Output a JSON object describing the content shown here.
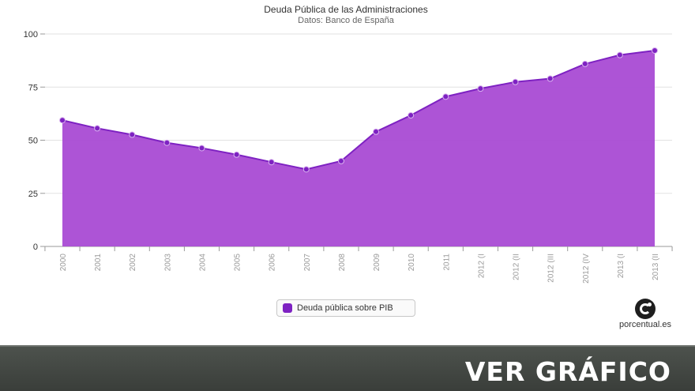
{
  "chart_data": {
    "type": "area",
    "title": "Deuda Pública de las Administraciones",
    "subtitle": "Datos: Banco de España",
    "categories": [
      "2000",
      "2001",
      "2002",
      "2003",
      "2004",
      "2005",
      "2006",
      "2007",
      "2008",
      "2009",
      "2010",
      "2011",
      "2012 (I",
      "2012 (II",
      "2012 (III",
      "2012 (IV",
      "2013 (I",
      "2013 (II"
    ],
    "series": [
      {
        "name": "Deuda pública sobre PIB",
        "color": "#a94bd4",
        "marker_color": "#7e22c2",
        "values": [
          59.4,
          55.6,
          52.6,
          48.8,
          46.3,
          43.2,
          39.7,
          36.3,
          40.2,
          54.0,
          61.7,
          70.5,
          74.3,
          77.4,
          79.0,
          85.9,
          90.1,
          92.2
        ]
      }
    ],
    "yticks": [
      "0",
      "25",
      "50",
      "75",
      "100"
    ],
    "ylim": [
      0,
      100
    ],
    "grid": true,
    "legend": "bottom-center"
  },
  "legend": {
    "label": "Deuda pública sobre PIB"
  },
  "brand": {
    "name": "porcentual.es",
    "icon": "porcentual-logo-icon"
  },
  "banner": {
    "text": "VER GRÁFICO"
  }
}
